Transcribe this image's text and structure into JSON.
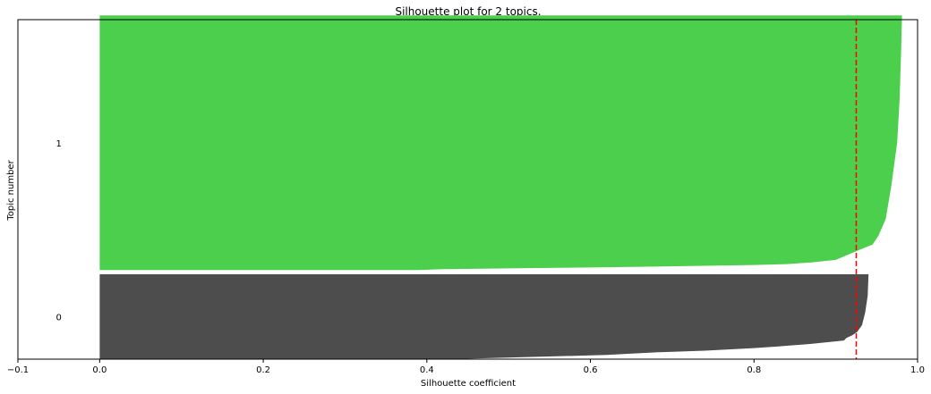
{
  "chart_data": {
    "type": "area",
    "title": "Silhouette plot for 2 topics.",
    "xlabel": "Silhouette coefficient",
    "ylabel": "Topic number",
    "xlim": [
      -0.1,
      1.0
    ],
    "ylim": [
      0,
      400
    ],
    "x_ticks": [
      -0.1,
      0.0,
      0.2,
      0.4,
      0.6,
      0.8,
      1.0
    ],
    "x_tick_labels": [
      "−0.1",
      "0.0",
      "0.2",
      "0.4",
      "0.6",
      "0.8",
      "1.0"
    ],
    "grid": false,
    "average_silhouette": 0.925,
    "average_line_color": "#ff0000",
    "series": [
      {
        "cluster_label": "0",
        "color": "#4d4d4d",
        "y_start": 0,
        "y_end": 100,
        "profile": [
          [
            0,
            0.43
          ],
          [
            5,
            0.62
          ],
          [
            8,
            0.68
          ],
          [
            10,
            0.74
          ],
          [
            13,
            0.8
          ],
          [
            15,
            0.83
          ],
          [
            18,
            0.87
          ],
          [
            20,
            0.89
          ],
          [
            22,
            0.91
          ],
          [
            25,
            0.913
          ],
          [
            28,
            0.92
          ],
          [
            32,
            0.926
          ],
          [
            40,
            0.932
          ],
          [
            55,
            0.936
          ],
          [
            75,
            0.939
          ],
          [
            100,
            0.94
          ]
        ]
      },
      {
        "cluster_label": "1",
        "color": "#4ccf4c",
        "y_start": 105,
        "y_end": 405,
        "profile": [
          [
            0,
            0.39
          ],
          [
            1,
            0.42
          ],
          [
            2,
            0.5
          ],
          [
            3,
            0.6
          ],
          [
            4,
            0.68
          ],
          [
            5,
            0.74
          ],
          [
            6,
            0.8
          ],
          [
            7,
            0.84
          ],
          [
            9,
            0.87
          ],
          [
            12,
            0.9
          ],
          [
            18,
            0.915
          ],
          [
            25,
            0.932
          ],
          [
            30,
            0.945
          ],
          [
            40,
            0.952
          ],
          [
            60,
            0.961
          ],
          [
            100,
            0.968
          ],
          [
            150,
            0.975
          ],
          [
            200,
            0.978
          ],
          [
            260,
            0.98
          ],
          [
            300,
            0.981
          ]
        ]
      }
    ]
  }
}
